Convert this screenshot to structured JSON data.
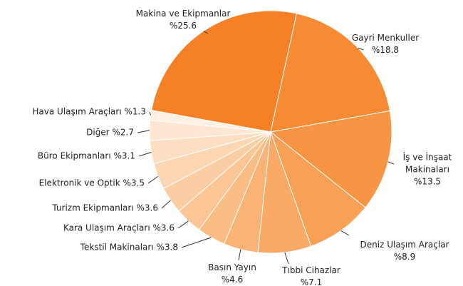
{
  "chart_data": {
    "type": "pie",
    "categories": [
      "Makina ve Ekipmanlar",
      "Gayri Menkuller",
      "İş ve İnşaat Makinaları",
      "Deniz Ulaşım Araçlar",
      "Tıbbi Cihazlar",
      "Basın Yayın",
      "Tekstil Makinaları",
      "Kara Ulaşım Araçları",
      "Turizm Ekipmanları",
      "Elektronik ve Optik",
      "Büro Ekipmanları",
      "Diğer",
      "Hava Ulaşım Araçları"
    ],
    "values": [
      25.6,
      18.8,
      13.5,
      8.9,
      7.1,
      4.6,
      3.8,
      3.6,
      3.6,
      3.5,
      3.1,
      2.7,
      1.3
    ],
    "value_labels": [
      "%25.6",
      "%18.8",
      "%13.5",
      "%8.9",
      "%7.1",
      "%4.6",
      "%3.8",
      "%3.6",
      "%3.6",
      "%3.5",
      "%3.1",
      "%2.7",
      "%1.3"
    ],
    "colors": [
      "#f58025",
      "#f68a35",
      "#f79544",
      "#f8a057",
      "#f9aa66",
      "#f9b377",
      "#fabd86",
      "#fbc596",
      "#fbcda4",
      "#fcd6b3",
      "#fcdfc3",
      "#fde7d3",
      "#fef0e4"
    ]
  }
}
